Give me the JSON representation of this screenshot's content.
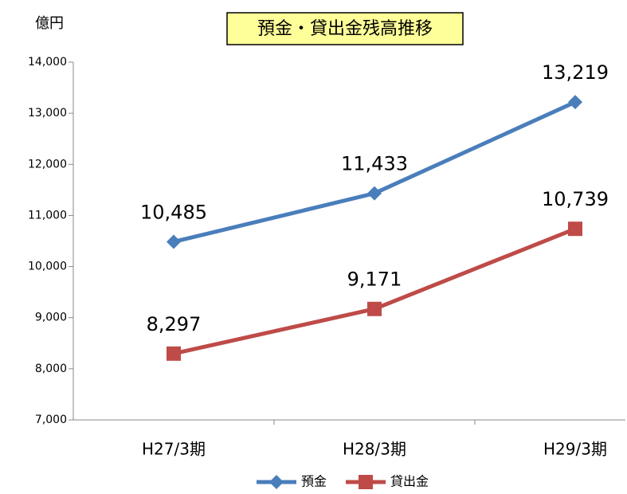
{
  "chart_data": {
    "type": "line",
    "title": "預金・貸出金残高推移",
    "y_label": "億円",
    "categories": [
      "H27/3期",
      "H28/3期",
      "H29/3期"
    ],
    "series": [
      {
        "name": "預金",
        "color": "#4a7ebb",
        "marker": "diamond",
        "values": [
          10485,
          11433,
          13219
        ],
        "value_labels": [
          "10,485",
          "11,433",
          "13,219"
        ]
      },
      {
        "name": "貸出金",
        "color": "#be4b48",
        "marker": "square",
        "values": [
          8297,
          9171,
          10739
        ],
        "value_labels": [
          "8,297",
          "9,171",
          "10,739"
        ]
      }
    ],
    "ylim": [
      7000,
      14000
    ],
    "yticks": [
      {
        "value": 7000,
        "label": "7,000"
      },
      {
        "value": 8000,
        "label": "8,000"
      },
      {
        "value": 9000,
        "label": "9,000"
      },
      {
        "value": 10000,
        "label": "10,000"
      },
      {
        "value": 11000,
        "label": "11,000"
      },
      {
        "value": 12000,
        "label": "12,000"
      },
      {
        "value": 13000,
        "label": "13,000"
      },
      {
        "value": 14000,
        "label": "14,000"
      }
    ],
    "grid": false,
    "legend": "bottom"
  }
}
